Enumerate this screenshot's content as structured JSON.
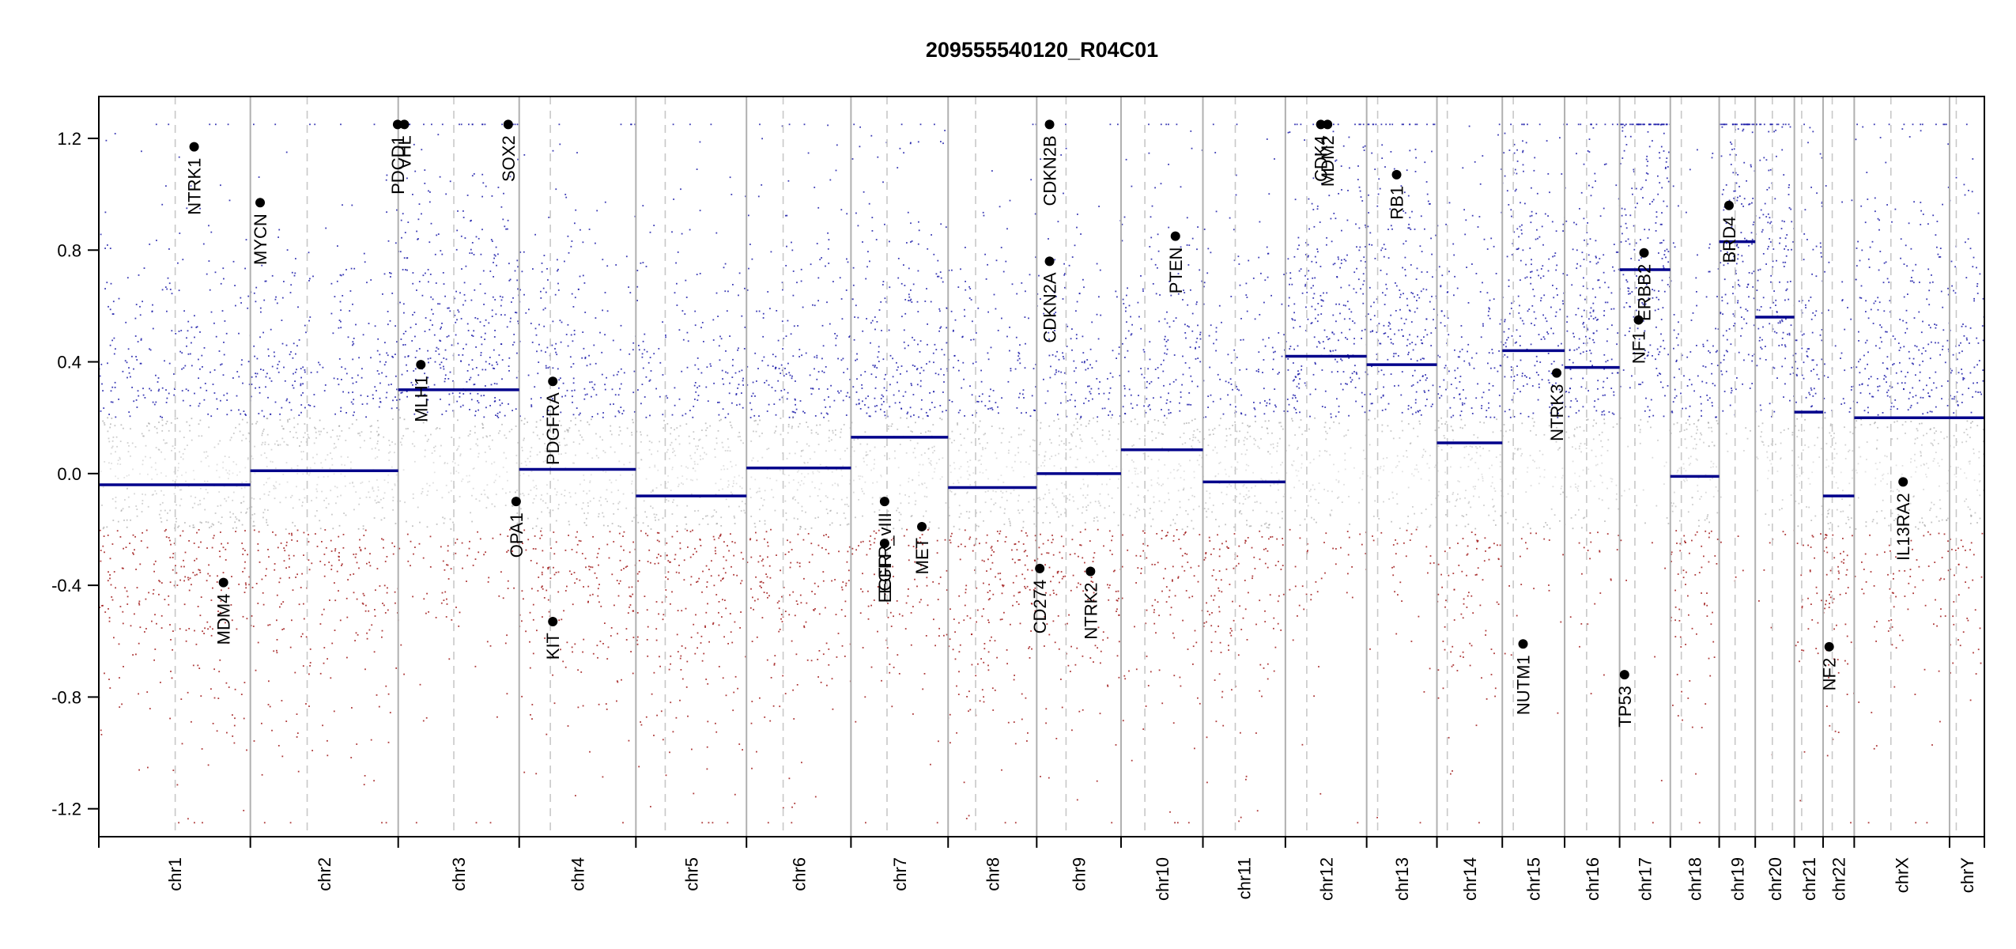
{
  "chart_data": {
    "type": "scatter",
    "title": "209555540120_R04C01",
    "xlabel": "",
    "ylabel": "",
    "ylim": [
      -1.3,
      1.35
    ],
    "y_ticks": [
      {
        "value": 1.2,
        "label": "1.2"
      },
      {
        "value": 0.8,
        "label": "0.8"
      },
      {
        "value": 0.4,
        "label": "0.4"
      },
      {
        "value": 0.0,
        "label": "0.0"
      },
      {
        "value": -0.4,
        "label": "-0.4"
      },
      {
        "value": -0.8,
        "label": "-0.8"
      },
      {
        "value": -1.2,
        "label": "-1.2"
      }
    ],
    "grid": false,
    "colors": {
      "gain": "#1a1aa8",
      "loss": "#a01818",
      "neutral": "#9a9a9a",
      "segment": "#00008b",
      "divider": "#b0b0b0",
      "centromere": "#c8c8c8",
      "gene_point": "#000000"
    },
    "chromosomes": [
      {
        "name": "chr1",
        "start": 0,
        "end": 248,
        "centromere": 125,
        "segment": -0.04
      },
      {
        "name": "chr2",
        "start": 248,
        "end": 490,
        "centromere": 341,
        "segment": 0.01
      },
      {
        "name": "chr3",
        "start": 490,
        "end": 688,
        "centromere": 581,
        "segment": 0.3
      },
      {
        "name": "chr4",
        "start": 688,
        "end": 879,
        "centromere": 739,
        "segment": 0.015
      },
      {
        "name": "chr5",
        "start": 879,
        "end": 1060,
        "centromere": 927,
        "segment": -0.08
      },
      {
        "name": "chr6",
        "start": 1060,
        "end": 1231,
        "centromere": 1120,
        "segment": 0.02
      },
      {
        "name": "chr7",
        "start": 1231,
        "end": 1390,
        "centromere": 1290,
        "segment": 0.13
      },
      {
        "name": "chr8",
        "start": 1390,
        "end": 1535,
        "centromere": 1435,
        "segment": -0.05
      },
      {
        "name": "chr9",
        "start": 1535,
        "end": 1673,
        "centromere": 1583,
        "segment": 0.0
      },
      {
        "name": "chr10",
        "start": 1673,
        "end": 1807,
        "centromere": 1712,
        "segment": 0.085
      },
      {
        "name": "chr11",
        "start": 1807,
        "end": 1942,
        "centromere": 1860,
        "segment": -0.03
      },
      {
        "name": "chr12",
        "start": 1942,
        "end": 2075,
        "centromere": 1977,
        "segment": 0.42
      },
      {
        "name": "chr13",
        "start": 2075,
        "end": 2190,
        "centromere": 2093,
        "segment": 0.39
      },
      {
        "name": "chr14",
        "start": 2190,
        "end": 2297,
        "centromere": 2207,
        "segment": 0.11
      },
      {
        "name": "chr15",
        "start": 2297,
        "end": 2399,
        "centromere": 2315,
        "segment": 0.44
      },
      {
        "name": "chr16",
        "start": 2399,
        "end": 2489,
        "centromere": 2435,
        "segment": 0.38
      },
      {
        "name": "chr17",
        "start": 2489,
        "end": 2572,
        "centromere": 2514,
        "segment": 0.73
      },
      {
        "name": "chr18",
        "start": 2572,
        "end": 2652,
        "centromere": 2590,
        "segment": -0.01
      },
      {
        "name": "chr19",
        "start": 2652,
        "end": 2711,
        "centromere": 2678,
        "segment": 0.83
      },
      {
        "name": "chr20",
        "start": 2711,
        "end": 2775,
        "centromere": 2739,
        "segment": 0.56
      },
      {
        "name": "chr21",
        "start": 2775,
        "end": 2822,
        "centromere": 2787,
        "segment": 0.22
      },
      {
        "name": "chr22",
        "start": 2822,
        "end": 2873,
        "centromere": 2837,
        "segment": -0.08
      },
      {
        "name": "chrX",
        "start": 2873,
        "end": 3029,
        "centromere": 2933,
        "segment": 0.2
      },
      {
        "name": "chrY",
        "start": 3029,
        "end": 3086,
        "centromere": 3040,
        "segment": 0.2
      }
    ],
    "genes": [
      {
        "name": "NTRK1",
        "x": 156,
        "y": 1.17
      },
      {
        "name": "MDM4",
        "x": 204,
        "y": -0.39
      },
      {
        "name": "MYCN",
        "x": 264,
        "y": 0.97
      },
      {
        "name": "PDCD1",
        "x": 489,
        "y": 1.25
      },
      {
        "name": "VHL",
        "x": 500,
        "y": 1.25
      },
      {
        "name": "MLH1",
        "x": 527,
        "y": 0.39
      },
      {
        "name": "SOX2",
        "x": 670,
        "y": 1.25
      },
      {
        "name": "OPA1",
        "x": 683,
        "y": -0.1
      },
      {
        "name": "PDGFRA",
        "x": 743,
        "y": 0.33
      },
      {
        "name": "KIT",
        "x": 743,
        "y": -0.53
      },
      {
        "name": "EGFR_vIII",
        "x": 1286,
        "y": -0.1
      },
      {
        "name": "EGFR",
        "x": 1286,
        "y": -0.25
      },
      {
        "name": "MET",
        "x": 1347,
        "y": -0.19
      },
      {
        "name": "CD274",
        "x": 1540,
        "y": -0.34
      },
      {
        "name": "CDKN2A",
        "x": 1556,
        "y": 0.76
      },
      {
        "name": "CDKN2B",
        "x": 1556,
        "y": 1.25
      },
      {
        "name": "NTRK2",
        "x": 1623,
        "y": -0.35
      },
      {
        "name": "PTEN",
        "x": 1762,
        "y": 0.85
      },
      {
        "name": "CDK4",
        "x": 2000,
        "y": 1.25
      },
      {
        "name": "MDM2",
        "x": 2011,
        "y": 1.25
      },
      {
        "name": "RB1",
        "x": 2124,
        "y": 1.07
      },
      {
        "name": "NUTM1",
        "x": 2331,
        "y": -0.61
      },
      {
        "name": "NTRK3",
        "x": 2386,
        "y": 0.36
      },
      {
        "name": "TP53",
        "x": 2497,
        "y": -0.72
      },
      {
        "name": "NF1",
        "x": 2520,
        "y": 0.55
      },
      {
        "name": "ERBB2",
        "x": 2529,
        "y": 0.79
      },
      {
        "name": "BRD4",
        "x": 2668,
        "y": 0.96
      },
      {
        "name": "NF2",
        "x": 2832,
        "y": -0.62
      },
      {
        "name": "IL13RA2",
        "x": 2953,
        "y": -0.03
      }
    ]
  }
}
